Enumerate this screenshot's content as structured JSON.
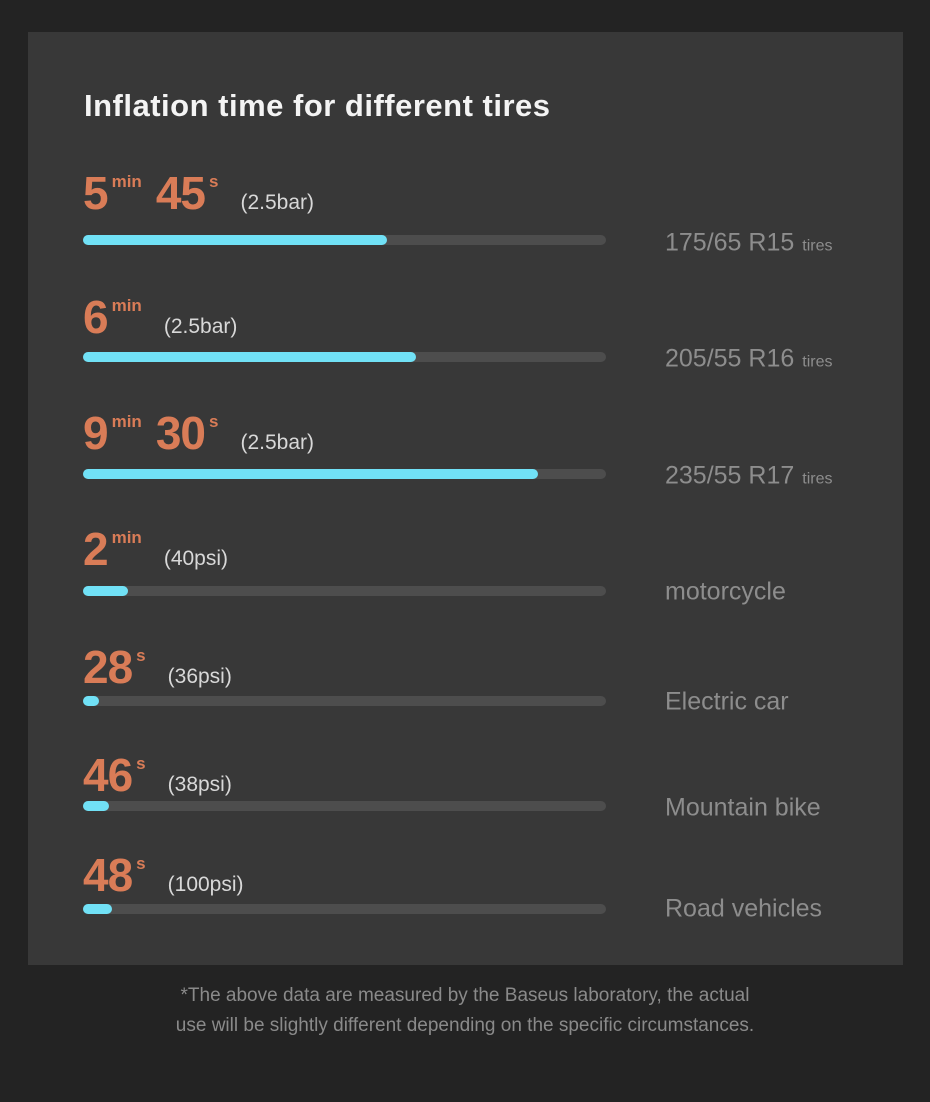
{
  "title": "Inflation time for different tires",
  "colors": {
    "background_outer": "#232323",
    "background_panel": "#383838",
    "accent_orange": "#d97c57",
    "bar_fill_cyan": "#71e1f6",
    "bar_track_gray": "#4d4d4d",
    "label_gray": "#8d8d8d",
    "title_white": "#f4f4f4"
  },
  "rows": [
    {
      "value1": "5",
      "unit1": "min",
      "value2": "45",
      "unit2": "s",
      "pressure": "(2.5bar)",
      "label": "175/65 R15",
      "label_suffix": "tires",
      "fill_percent": 58.2
    },
    {
      "value1": "6",
      "unit1": "min",
      "value2": "",
      "unit2": "",
      "pressure": "(2.5bar)",
      "label": "205/55 R16",
      "label_suffix": "tires",
      "fill_percent": 63.7
    },
    {
      "value1": "9",
      "unit1": "min",
      "value2": "30",
      "unit2": "s",
      "pressure": "(2.5bar)",
      "label": "235/55 R17",
      "label_suffix": "tires",
      "fill_percent": 87.0
    },
    {
      "value1": "2",
      "unit1": "min",
      "value2": "",
      "unit2": "",
      "pressure": "(40psi)",
      "label": "motorcycle",
      "label_suffix": "",
      "fill_percent": 8.6
    },
    {
      "value1": "28",
      "unit1": "s",
      "value2": "",
      "unit2": "",
      "pressure": "(36psi)",
      "label": "Electric car",
      "label_suffix": "",
      "fill_percent": 3.1
    },
    {
      "value1": "46",
      "unit1": "s",
      "value2": "",
      "unit2": "",
      "pressure": "(38psi)",
      "label": "Mountain bike",
      "label_suffix": "",
      "fill_percent": 5.0
    },
    {
      "value1": "48",
      "unit1": "s",
      "value2": "",
      "unit2": "",
      "pressure": "(100psi)",
      "label": "Road vehicles",
      "label_suffix": "",
      "fill_percent": 5.5
    }
  ],
  "footnote_line1": "*The above data are measured by the Baseus laboratory, the actual",
  "footnote_line2": "use will be slightly different depending on the specific circumstances.",
  "chart_data": {
    "type": "bar",
    "orientation": "horizontal",
    "title": "Inflation time for different tires",
    "categories": [
      "175/65 R15 tires",
      "205/55 R16 tires",
      "235/55 R17 tires",
      "motorcycle",
      "Electric car",
      "Mountain bike",
      "Road vehicles"
    ],
    "series": [
      {
        "name": "inflation_time_seconds",
        "values": [
          345,
          360,
          570,
          120,
          28,
          46,
          48
        ]
      }
    ],
    "value_labels": [
      "5min 45s",
      "6min",
      "9min 30s",
      "2min",
      "28s",
      "46s",
      "48s"
    ],
    "pressure_conditions": [
      "2.5bar",
      "2.5bar",
      "2.5bar",
      "40psi",
      "36psi",
      "38psi",
      "100psi"
    ],
    "bar_fill_percent_of_track": [
      58.2,
      63.7,
      87.0,
      8.6,
      3.1,
      5.0,
      5.5
    ],
    "grid": false,
    "legend": false,
    "annotation": "*The above data are measured by the Baseus laboratory, the actual use will be slightly different depending on the specific circumstances."
  }
}
